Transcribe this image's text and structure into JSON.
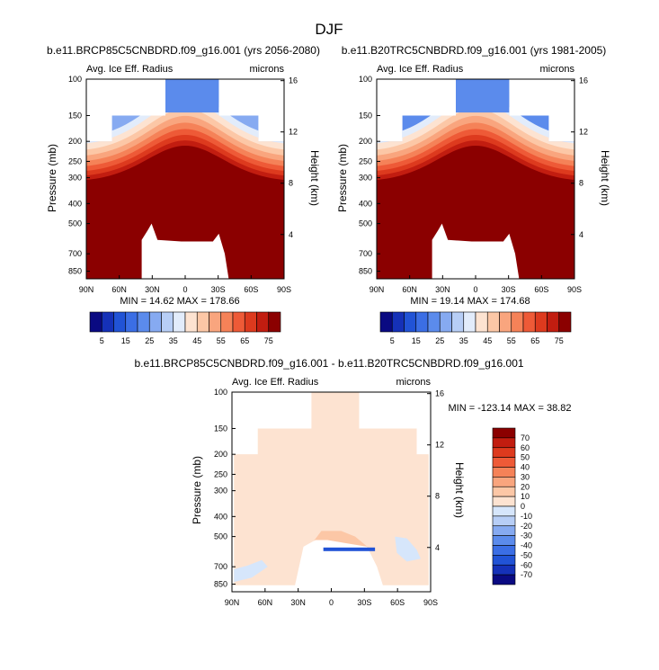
{
  "figure": {
    "title": "DJF"
  },
  "chart_data": [
    {
      "type": "contour",
      "title": "b.e11.BRCP85C5CNBDRD.f09_g16.001 (yrs 2056-2080)",
      "left_string": "Avg. Ice Eff. Radius",
      "right_string": "microns",
      "xlabel": "",
      "ylabel": "Pressure (mb)",
      "y2label": "Height (km)",
      "x_ticks": [
        "90N",
        "60N",
        "30N",
        "0",
        "30S",
        "60S",
        "90S"
      ],
      "y_ticks": [
        "100",
        "150",
        "200",
        "250",
        "300",
        "400",
        "500",
        "700",
        "850"
      ],
      "y2_ticks": [
        "16",
        "12",
        "8",
        "4"
      ],
      "stats": "MIN = 14.62  MAX = 178.66",
      "levels": [
        5,
        10,
        15,
        20,
        25,
        30,
        35,
        40,
        45,
        50,
        55,
        60,
        65,
        70,
        75
      ],
      "colorbar_labels": [
        "5",
        "15",
        "25",
        "35",
        "45",
        "55",
        "65",
        "75"
      ],
      "colors": [
        "#0a0a82",
        "#1531b8",
        "#2153d6",
        "#3b6ee5",
        "#5b8bec",
        "#86aaf1",
        "#b7cef6",
        "#e2ecfb",
        "#fde3d1",
        "#fcc7a6",
        "#f9a57e",
        "#f58258",
        "#ee5a37",
        "#dd3a1e",
        "#c21d10",
        "#8b0000"
      ]
    },
    {
      "type": "contour",
      "title": "b.e11.B20TRC5CNBDRD.f09_g16.001 (yrs 1981-2005)",
      "left_string": "Avg. Ice Eff. Radius",
      "right_string": "microns",
      "xlabel": "",
      "ylabel": "Pressure (mb)",
      "y2label": "Height (km)",
      "x_ticks": [
        "90N",
        "60N",
        "30N",
        "0",
        "30S",
        "60S",
        "90S"
      ],
      "y_ticks": [
        "100",
        "150",
        "200",
        "250",
        "300",
        "400",
        "500",
        "700",
        "850"
      ],
      "y2_ticks": [
        "16",
        "12",
        "8",
        "4"
      ],
      "stats": "MIN = 19.14  MAX = 174.68",
      "levels": [
        5,
        10,
        15,
        20,
        25,
        30,
        35,
        40,
        45,
        50,
        55,
        60,
        65,
        70,
        75
      ],
      "colorbar_labels": [
        "5",
        "15",
        "25",
        "35",
        "45",
        "55",
        "65",
        "75"
      ],
      "colors": [
        "#0a0a82",
        "#1531b8",
        "#2153d6",
        "#3b6ee5",
        "#5b8bec",
        "#86aaf1",
        "#b7cef6",
        "#e2ecfb",
        "#fde3d1",
        "#fcc7a6",
        "#f9a57e",
        "#f58258",
        "#ee5a37",
        "#dd3a1e",
        "#c21d10",
        "#8b0000"
      ]
    },
    {
      "type": "contour",
      "title": "b.e11.BRCP85C5CNBDRD.f09_g16.001 - b.e11.B20TRC5CNBDRD.f09_g16.001",
      "left_string": "Avg. Ice Eff. Radius",
      "right_string": "microns",
      "xlabel": "",
      "ylabel": "Pressure (mb)",
      "y2label": "Height (km)",
      "x_ticks": [
        "90N",
        "60N",
        "30N",
        "0",
        "30S",
        "60S",
        "90S"
      ],
      "y_ticks": [
        "100",
        "150",
        "200",
        "250",
        "300",
        "400",
        "500",
        "700",
        "850"
      ],
      "y2_ticks": [
        "16",
        "12",
        "8",
        "4"
      ],
      "stats": "MIN = -123.14  MAX =  38.82",
      "levels": [
        -70,
        -60,
        -50,
        -40,
        -30,
        -20,
        -10,
        0,
        10,
        20,
        30,
        40,
        50,
        60,
        70
      ],
      "colorbar_labels": [
        "70",
        "60",
        "50",
        "40",
        "30",
        "20",
        "10",
        "0",
        "-10",
        "-20",
        "-30",
        "-40",
        "-50",
        "-60",
        "-70"
      ],
      "colors": [
        "#8b0000",
        "#c21d10",
        "#dd3a1e",
        "#ee5a37",
        "#f58258",
        "#f9a57e",
        "#fcc7a6",
        "#fde3d1",
        "#d6e6fb",
        "#b7cef6",
        "#86aaf1",
        "#5b8bec",
        "#3b6ee5",
        "#2153d6",
        "#1531b8",
        "#0a0a82"
      ]
    }
  ]
}
